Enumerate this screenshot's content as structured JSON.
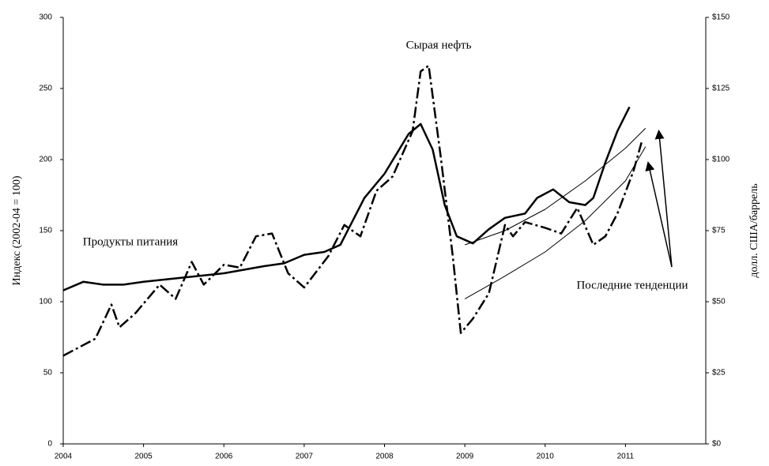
{
  "chart_data": {
    "type": "line",
    "y_label": "Индекс (2002-04 = 100)",
    "y2_label": "долл. США/баррель",
    "annotations": [
      "Сырая нефть",
      "Продукты питания",
      "Последние тенденции"
    ],
    "xlim": [
      2004,
      2012
    ],
    "xticks": [
      2004,
      2005,
      2006,
      2007,
      2008,
      2009,
      2010,
      2011
    ],
    "ylim": [
      0,
      300
    ],
    "yticks": [
      0,
      50,
      100,
      150,
      200,
      250,
      300
    ],
    "y2lim": [
      0,
      150
    ],
    "y2ticks": [
      {
        "value": 0,
        "label": "$0"
      },
      {
        "value": 25,
        "label": "$25"
      },
      {
        "value": 50,
        "label": "$50"
      },
      {
        "value": 75,
        "label": "$75"
      },
      {
        "value": 100,
        "label": "$100"
      },
      {
        "value": 125,
        "label": "$125"
      },
      {
        "value": 150,
        "label": "$150"
      }
    ],
    "series": [
      {
        "color": "#000000",
        "style": "solid",
        "x": [
          2004.0,
          2004.25,
          2004.5,
          2004.75,
          2005.0,
          2005.5,
          2006.0,
          2006.5,
          2006.75,
          2007.0,
          2007.25,
          2007.45,
          2007.55,
          2007.75,
          2008.0,
          2008.3,
          2008.45,
          2008.6,
          2008.75,
          2008.9,
          2009.1,
          2009.3,
          2009.5,
          2009.75,
          2009.9,
          2010.1,
          2010.3,
          2010.5,
          2010.6,
          2010.75,
          2010.9,
          2011.05
        ],
        "values": [
          108,
          114,
          112,
          112,
          114,
          117,
          120,
          125,
          127,
          133,
          135,
          140,
          151,
          173,
          190,
          218,
          225,
          207,
          168,
          146,
          141,
          151,
          159,
          162,
          173,
          179,
          170,
          168,
          173,
          198,
          220,
          237
        ]
      },
      {
        "color": "#000000",
        "style": "dashdot",
        "axis": "y2",
        "x": [
          2004.0,
          2004.4,
          2004.6,
          2004.7,
          2004.9,
          2005.2,
          2005.4,
          2005.6,
          2005.75,
          2006.0,
          2006.2,
          2006.4,
          2006.6,
          2006.8,
          2007.0,
          2007.3,
          2007.5,
          2007.7,
          2007.9,
          2008.1,
          2008.35,
          2008.45,
          2008.55,
          2008.7,
          2008.85,
          2008.95,
          2009.1,
          2009.3,
          2009.5,
          2009.6,
          2009.75,
          2010.0,
          2010.2,
          2010.4,
          2010.6,
          2010.75,
          2010.9,
          2011.1,
          2011.2
        ],
        "values": [
          31,
          37,
          49,
          41,
          46,
          56,
          51,
          64,
          56,
          63,
          62,
          73,
          74,
          60,
          55,
          66,
          77,
          73,
          89,
          94,
          110,
          131,
          133,
          101,
          66,
          39,
          44,
          53,
          77,
          73,
          78,
          76,
          74,
          83,
          70,
          73,
          81,
          96,
          106
        ]
      },
      {
        "color": "#000000",
        "style": "thin",
        "x": [
          2009.0,
          2009.5,
          2010.0,
          2010.5,
          2011.0,
          2011.25
        ],
        "values": [
          140,
          150,
          165,
          185,
          208,
          222
        ]
      },
      {
        "color": "#000000",
        "style": "thin",
        "x": [
          2009.0,
          2009.5,
          2010.0,
          2010.5,
          2011.0,
          2011.25
        ],
        "values": [
          102,
          118,
          135,
          157,
          185,
          209
        ]
      }
    ]
  }
}
